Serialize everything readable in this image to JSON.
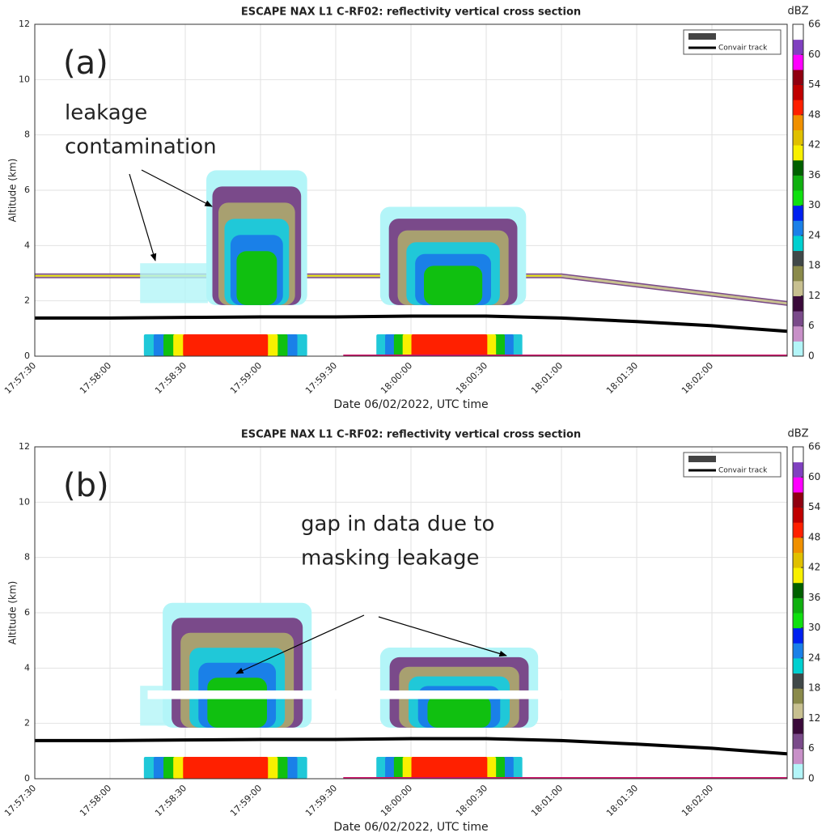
{
  "chart_data": [
    {
      "type": "line",
      "title": "ESCAPE NAX L1 C-RF02: reflectivity vertical cross section",
      "panel_label": "(a)",
      "annotation": [
        "leakage",
        "contamination"
      ],
      "xlabel": "Date 06/02/2022, UTC time",
      "ylabel": "Altitude (km)",
      "x": [
        "17:57:30",
        "17:58:00",
        "17:58:30",
        "17:59:00",
        "17:59:30",
        "18:00:00",
        "18:00:30",
        "18:01:00",
        "18:01:30",
        "18:02:00",
        "18:02:30"
      ],
      "series": [
        {
          "name": "Convair track",
          "color": "#000000",
          "values": [
            1.38,
            1.38,
            1.4,
            1.42,
            1.42,
            1.45,
            1.45,
            1.38,
            1.25,
            1.1,
            0.9
          ]
        }
      ],
      "xlim": [
        "17:57:30",
        "18:02:30"
      ],
      "xticks": [
        "17:57:30",
        "17:58:00",
        "17:58:30",
        "17:59:00",
        "17:59:30",
        "18:00:00",
        "18:00:30",
        "18:01:00",
        "18:01:30",
        "18:02:00"
      ],
      "ylim": [
        0,
        12
      ],
      "yticks": [
        0,
        2,
        4,
        6,
        8,
        10,
        12
      ],
      "grid": true,
      "legend": "upper right",
      "colorbar": {
        "label": "dBZ",
        "lim": [
          0,
          66
        ],
        "ticks": [
          0,
          6,
          12,
          18,
          24,
          30,
          36,
          42,
          48,
          54,
          60,
          66
        ],
        "colors": [
          "#b3f5f8",
          "#c890c8",
          "#7a4a8a",
          "#3a0a3a",
          "#c8c090",
          "#8a8a4a",
          "#404848",
          "#00d0d0",
          "#1a80e8",
          "#0020f0",
          "#10e010",
          "#10b010",
          "#006000",
          "#f8f000",
          "#e0c000",
          "#f09000",
          "#ff2000",
          "#c00000",
          "#900010",
          "#ff00ff",
          "#8040c0",
          "#ffffff"
        ]
      }
    },
    {
      "type": "line",
      "title": "ESCAPE NAX L1 C-RF02: reflectivity vertical cross section",
      "panel_label": "(b)",
      "annotation": [
        "gap in data due to",
        "masking leakage"
      ],
      "xlabel": "Date 06/02/2022, UTC time",
      "ylabel": "Altitude (km)",
      "x": [
        "17:57:30",
        "17:58:00",
        "17:58:30",
        "17:59:00",
        "17:59:30",
        "18:00:00",
        "18:00:30",
        "18:01:00",
        "18:01:30",
        "18:02:00",
        "18:02:30"
      ],
      "series": [
        {
          "name": "Convair track",
          "color": "#000000",
          "values": [
            1.38,
            1.38,
            1.4,
            1.42,
            1.42,
            1.45,
            1.45,
            1.38,
            1.25,
            1.1,
            0.9
          ]
        }
      ],
      "xlim": [
        "17:57:30",
        "18:02:30"
      ],
      "xticks": [
        "17:57:30",
        "17:58:00",
        "17:58:30",
        "17:59:00",
        "17:59:30",
        "18:00:00",
        "18:00:30",
        "18:01:00",
        "18:01:30",
        "18:02:00"
      ],
      "ylim": [
        0,
        12
      ],
      "yticks": [
        0,
        2,
        4,
        6,
        8,
        10,
        12
      ],
      "grid": true,
      "legend": "upper right",
      "colorbar": {
        "label": "dBZ",
        "lim": [
          0,
          66
        ],
        "ticks": [
          0,
          6,
          12,
          18,
          24,
          30,
          36,
          42,
          48,
          54,
          60,
          66
        ],
        "colors": [
          "#b3f5f8",
          "#c890c8",
          "#7a4a8a",
          "#3a0a3a",
          "#c8c090",
          "#8a8a4a",
          "#404848",
          "#00d0d0",
          "#1a80e8",
          "#0020f0",
          "#10e010",
          "#10b010",
          "#006000",
          "#f8f000",
          "#e0c000",
          "#f09000",
          "#ff2000",
          "#c00000",
          "#900010",
          "#ff00ff",
          "#8040c0",
          "#ffffff"
        ]
      }
    }
  ]
}
